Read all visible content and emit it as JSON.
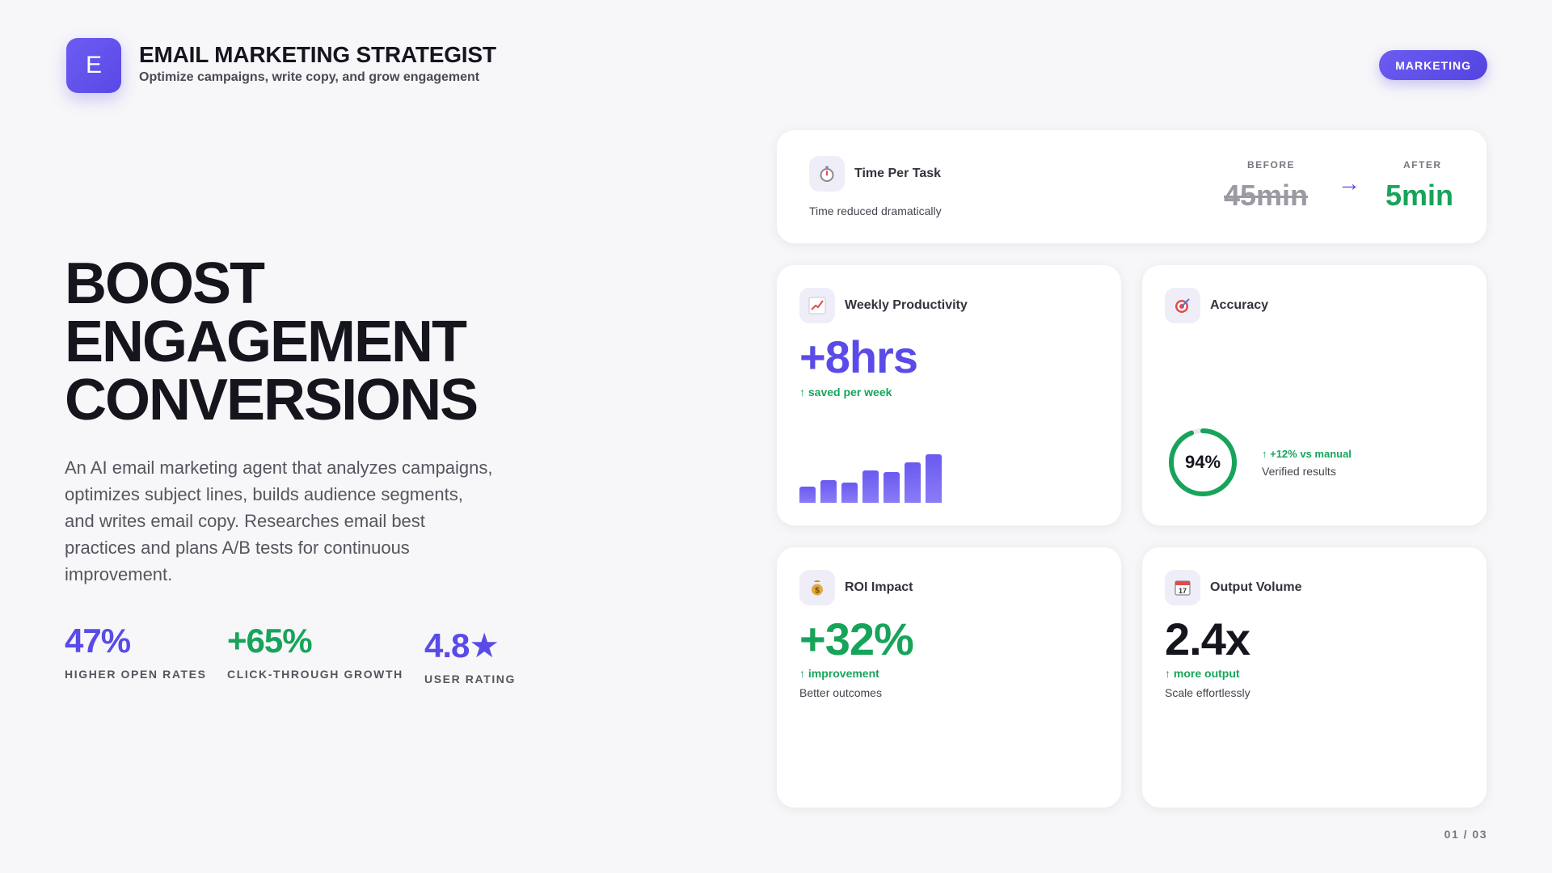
{
  "header": {
    "logo_letter": "E",
    "title": "EMAIL MARKETING STRATEGIST",
    "subtitle": "Optimize campaigns, write copy, and grow engagement",
    "badge": "MARKETING"
  },
  "hero": {
    "headline_lines": [
      "BOOST",
      "ENGAGEMENT",
      "CONVERSIONS"
    ],
    "description": "An AI email marketing agent that analyzes campaigns, optimizes subject lines, builds audience segments, and writes email copy. Researches email best practices and plans A/B tests for continuous improvement."
  },
  "stats": [
    {
      "value": "47%",
      "label": "HIGHER OPEN RATES",
      "color": "#5a4be8"
    },
    {
      "value": "+65%",
      "label": "CLICK-THROUGH GROWTH",
      "color": "#17a45a"
    },
    {
      "value": "4.8★",
      "label": "USER RATING",
      "color": "#5a4be8"
    }
  ],
  "time_card": {
    "icon": "stopwatch-icon",
    "title": "Time Per Task",
    "note": "Time reduced dramatically",
    "before_label": "BEFORE",
    "before_value": "45min",
    "after_label": "AFTER",
    "after_value": "5min",
    "arrow": "→"
  },
  "weekly_card": {
    "icon": "chart-up-icon",
    "title": "Weekly Productivity",
    "value": "+8hrs",
    "trend": "↑  saved per week",
    "bar_levels": [
      0.33,
      0.47,
      0.42,
      0.67,
      0.63,
      0.83,
      1.0
    ]
  },
  "accuracy_card": {
    "icon": "target-icon",
    "title": "Accuracy",
    "value": "94%",
    "progress": 0.94,
    "trend": "↑  +12% vs manual",
    "note": "Verified results"
  },
  "roi_card": {
    "icon": "money-bag-icon",
    "title": "ROI Impact",
    "value": "+32%",
    "trend": "↑  improvement",
    "note": "Better outcomes"
  },
  "output_card": {
    "icon": "calendar-icon",
    "title": "Output Volume",
    "value": "2.4x",
    "trend": "↑  more output",
    "note": "Scale effortlessly"
  },
  "footer": {
    "page": "01 / 03"
  },
  "colors": {
    "accent": "#5a4be8",
    "positive": "#17a45a",
    "text": "#15151d"
  }
}
